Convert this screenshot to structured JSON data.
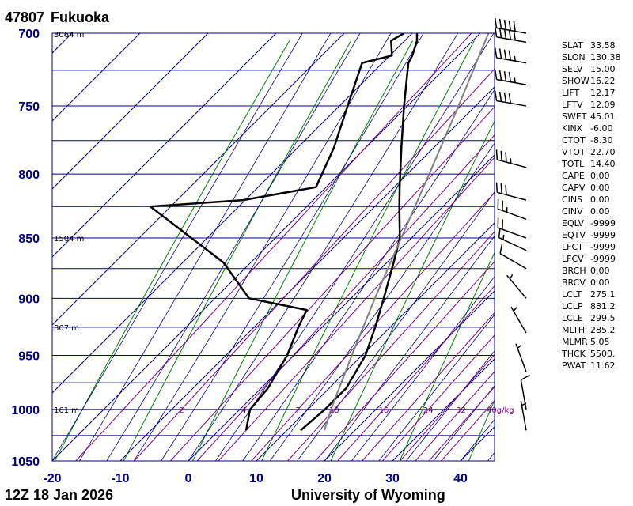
{
  "header": {
    "station_id": "47807",
    "station_name": "Fukuoka"
  },
  "footer": {
    "time": "12Z 18 Jan 2026",
    "credit": "University of Wyoming"
  },
  "colors": {
    "frame": "#000080",
    "axis_text": "#000080",
    "isotherm": "#000080",
    "dry_adiabat": "#008000",
    "moist_adiabat": "#000080",
    "mixing_ratio": "#800080",
    "sounding": "#000000",
    "parcel": "#808080"
  },
  "chart_data": {
    "type": "line",
    "diagram": "skew-T log-p",
    "xlim": [
      -20,
      45
    ],
    "ylim": [
      1050,
      700
    ],
    "y_scale": "log",
    "x_ticks": [
      -20,
      -10,
      0,
      10,
      20,
      30,
      40
    ],
    "y_ticks": [
      700,
      750,
      800,
      850,
      900,
      950,
      1000,
      1050
    ],
    "x_tick_labels": [
      "-20",
      "-10",
      "0",
      "10",
      "20",
      "30",
      "40"
    ],
    "y_tick_labels": [
      "700",
      "750",
      "800",
      "850",
      "900",
      "950",
      "1000",
      "1050"
    ],
    "height_labels": [
      {
        "p": 700,
        "text": "3064 m"
      },
      {
        "p": 850,
        "text": "1504 m"
      },
      {
        "p": 925,
        "text": "807 m"
      },
      {
        "p": 1000,
        "text": "161 m"
      }
    ],
    "mixing_ratio_labels": [
      "2",
      "4",
      "7",
      "10",
      "16",
      "24",
      "32",
      "40g/kg"
    ],
    "series": [
      {
        "role": "temperature",
        "p": [
          1020,
          1000,
          980,
          950,
          925,
          900,
          870,
          850,
          825,
          810,
          780,
          750,
          720,
          715,
          705,
          700
        ],
        "t": [
          12.0,
          12.5,
          12.5,
          10.5,
          7.8,
          4.8,
          1.0,
          -1.7,
          -6.4,
          -9.2,
          -14.8,
          -20.5,
          -26.2,
          -26.7,
          -28.2,
          -29.3
        ]
      },
      {
        "role": "dewpoint",
        "p": [
          1020,
          1000,
          980,
          950,
          925,
          910,
          900,
          870,
          825,
          820,
          810,
          780,
          750,
          720,
          715,
          705,
          700
        ],
        "t": [
          4.0,
          1.5,
          1.0,
          -1.0,
          -3.5,
          -4.8,
          -15.0,
          -24.0,
          -43.0,
          -30.3,
          -21.5,
          -24.7,
          -28.8,
          -33.0,
          -29.7,
          -32.0,
          -31.2
        ]
      },
      {
        "role": "parcel",
        "p": [
          1020,
          1000,
          950,
          900,
          850,
          800,
          750,
          700
        ],
        "t": [
          15.5,
          13.4,
          8.5,
          3.5,
          -1.5,
          -6.8,
          -12.5,
          -18.8
        ]
      }
    ],
    "wind_barbs": [
      {
        "p": 700,
        "speed_kt": 50,
        "dir_deg": 280
      },
      {
        "p": 706,
        "speed_kt": 50,
        "dir_deg": 280
      },
      {
        "p": 720,
        "speed_kt": 45,
        "dir_deg": 280
      },
      {
        "p": 735,
        "speed_kt": 45,
        "dir_deg": 280
      },
      {
        "p": 750,
        "speed_kt": 40,
        "dir_deg": 280
      },
      {
        "p": 795,
        "speed_kt": 35,
        "dir_deg": 285
      },
      {
        "p": 820,
        "speed_kt": 30,
        "dir_deg": 285
      },
      {
        "p": 835,
        "speed_kt": 25,
        "dir_deg": 290
      },
      {
        "p": 850,
        "speed_kt": 20,
        "dir_deg": 290
      },
      {
        "p": 860,
        "speed_kt": 15,
        "dir_deg": 295
      },
      {
        "p": 875,
        "speed_kt": 10,
        "dir_deg": 300
      },
      {
        "p": 900,
        "speed_kt": 5,
        "dir_deg": 320
      },
      {
        "p": 930,
        "speed_kt": 5,
        "dir_deg": 330
      },
      {
        "p": 965,
        "speed_kt": 5,
        "dir_deg": 340
      },
      {
        "p": 1000,
        "speed_kt": 10,
        "dir_deg": 350
      },
      {
        "p": 1020,
        "speed_kt": 5,
        "dir_deg": 350
      }
    ]
  },
  "indices": [
    {
      "key": "SLAT",
      "value": "33.58"
    },
    {
      "key": "SLON",
      "value": "130.38"
    },
    {
      "key": "SELV",
      "value": "15.00"
    },
    {
      "key": "SHOW",
      "value": "16.22"
    },
    {
      "key": "LIFT",
      "value": "12.17"
    },
    {
      "key": "LFTV",
      "value": "12.09"
    },
    {
      "key": "SWET",
      "value": "45.01"
    },
    {
      "key": "KINX",
      "value": "-6.00"
    },
    {
      "key": "CTOT",
      "value": "-8.30"
    },
    {
      "key": "VTOT",
      "value": "22.70"
    },
    {
      "key": "TOTL",
      "value": "14.40"
    },
    {
      "key": "CAPE",
      "value": "0.00"
    },
    {
      "key": "CAPV",
      "value": "0.00"
    },
    {
      "key": "CINS",
      "value": "0.00"
    },
    {
      "key": "CINV",
      "value": "0.00"
    },
    {
      "key": "EQLV",
      "value": "-9999"
    },
    {
      "key": "EQTV",
      "value": "-9999"
    },
    {
      "key": "LFCT",
      "value": "-9999"
    },
    {
      "key": "LFCV",
      "value": "-9999"
    },
    {
      "key": "BRCH",
      "value": "0.00"
    },
    {
      "key": "BRCV",
      "value": "0.00"
    },
    {
      "key": "LCLT",
      "value": "275.1"
    },
    {
      "key": "LCLP",
      "value": "881.2"
    },
    {
      "key": "LCLE",
      "value": "299.5"
    },
    {
      "key": "MLTH",
      "value": "285.2"
    },
    {
      "key": "MLMR",
      "value": "5.05"
    },
    {
      "key": "THCK",
      "value": "5500."
    },
    {
      "key": "PWAT",
      "value": "11.62"
    }
  ]
}
